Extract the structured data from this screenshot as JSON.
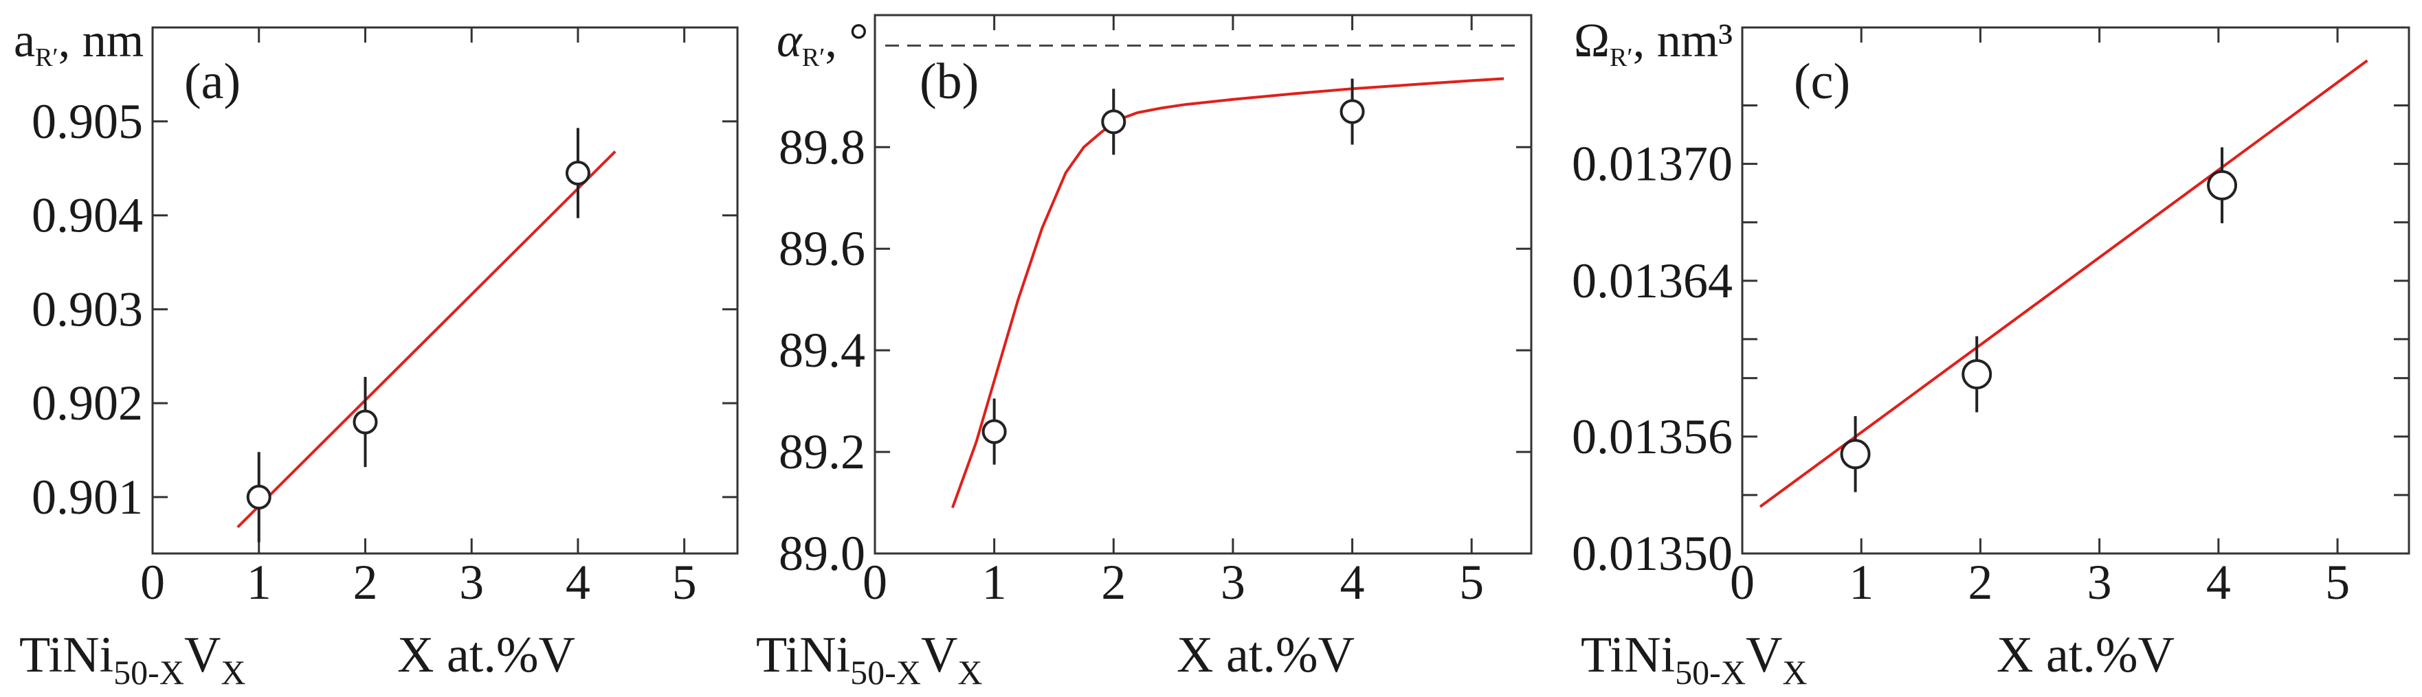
{
  "chart_data": [
    {
      "type": "scatter",
      "panel_label": "(a)",
      "ylabel": "a",
      "ylabel_sub": "R′",
      "ylabel_unit": ", nm",
      "xlabel_compound": "TiNi",
      "xlabel_compound_sub": "50-X",
      "xlabel_compound_el": "V",
      "xlabel_compound_el_sub": "X",
      "xlabel": "X at.%V",
      "xlim": [
        0,
        5.5
      ],
      "ylim": [
        0.9004,
        0.906
      ],
      "x_ticks": [
        0,
        1,
        2,
        3,
        4,
        5
      ],
      "x_tick_labels": [
        "0",
        "1",
        "2",
        "3",
        "4",
        "5"
      ],
      "y_ticks": [
        0.901,
        0.902,
        0.903,
        0.904,
        0.905
      ],
      "y_tick_labels": [
        "0.901",
        "0.902",
        "0.903",
        "0.904",
        "0.905"
      ],
      "points": [
        {
          "x": 1,
          "y": 0.901,
          "err": 0.00048
        },
        {
          "x": 2,
          "y": 0.9018,
          "err": 0.00048
        },
        {
          "x": 4,
          "y": 0.90445,
          "err": 0.00048
        }
      ],
      "fit": {
        "x": [
          0.8,
          4.35
        ],
        "y": [
          0.90068,
          0.90468
        ]
      },
      "fit_color": "#e0201b",
      "dashed_ref": null
    },
    {
      "type": "scatter",
      "panel_label": "(b)",
      "ylabel": "α",
      "ylabel_sub": "R′",
      "ylabel_unit": ", °",
      "xlabel_compound": "TiNi",
      "xlabel_compound_sub": "50-X",
      "xlabel_compound_el": "V",
      "xlabel_compound_el_sub": "X",
      "xlabel": "X at.%V",
      "xlim": [
        0,
        5.5
      ],
      "ylim": [
        89.0,
        90.06
      ],
      "x_ticks": [
        0,
        1,
        2,
        3,
        4,
        5
      ],
      "x_tick_labels": [
        "0",
        "1",
        "2",
        "3",
        "4",
        "5"
      ],
      "y_ticks": [
        89.0,
        89.2,
        89.4,
        89.6,
        89.8
      ],
      "y_tick_labels": [
        "89.0",
        "89.2",
        "89.4",
        "89.6",
        "89.8"
      ],
      "points": [
        {
          "x": 1,
          "y": 89.24,
          "err": 0.065
        },
        {
          "x": 2,
          "y": 89.85,
          "err": 0.065
        },
        {
          "x": 4,
          "y": 89.87,
          "err": 0.065
        }
      ],
      "fit": {
        "x": [
          0.65,
          0.85,
          1.0,
          1.2,
          1.4,
          1.6,
          1.75,
          1.9,
          2.05,
          2.2,
          2.4,
          2.6,
          3.0,
          3.5,
          4.0,
          4.5,
          5.0,
          5.27
        ],
        "y": [
          89.09,
          89.22,
          89.34,
          89.5,
          89.64,
          89.75,
          89.8,
          89.83,
          89.855,
          89.868,
          89.877,
          89.884,
          89.894,
          89.905,
          89.915,
          89.923,
          89.931,
          89.935
        ]
      },
      "fit_color": "#e0201b",
      "dashed_ref": 90.0
    },
    {
      "type": "scatter",
      "panel_label": "(c)",
      "ylabel": "Ω",
      "ylabel_sub": "R′",
      "ylabel_unit": ", nm³",
      "xlabel_compound": "TiNi",
      "xlabel_compound_sub": "50-X",
      "xlabel_compound_el": "V",
      "xlabel_compound_el_sub": "X",
      "xlabel": "X at.%V",
      "xlim": [
        0,
        5.6
      ],
      "ylim": [
        0.0135,
        0.01377
      ],
      "x_ticks": [
        0,
        1,
        2,
        3,
        4,
        5
      ],
      "x_tick_labels": [
        "0",
        "1",
        "2",
        "3",
        "4",
        "5"
      ],
      "y_ticks": [
        0.0135,
        0.01356,
        0.01364,
        0.0137
      ],
      "y_tick_labels": [
        "0.01350",
        "0.01356",
        "0.01364",
        "0.01370"
      ],
      "y_minor_ticks": [
        0.01353,
        0.01359,
        0.01361,
        0.01367,
        0.01373
      ],
      "points": [
        {
          "x": 0.95,
          "y": 0.013551,
          "err": 1.95e-05
        },
        {
          "x": 1.97,
          "y": 0.013592,
          "err": 1.95e-05
        },
        {
          "x": 4.03,
          "y": 0.013689,
          "err": 1.95e-05
        }
      ],
      "fit": {
        "x": [
          0.15,
          5.25
        ],
        "y": [
          0.013524,
          0.013753
        ]
      },
      "fit_color": "#e0201b",
      "dashed_ref": null
    }
  ]
}
